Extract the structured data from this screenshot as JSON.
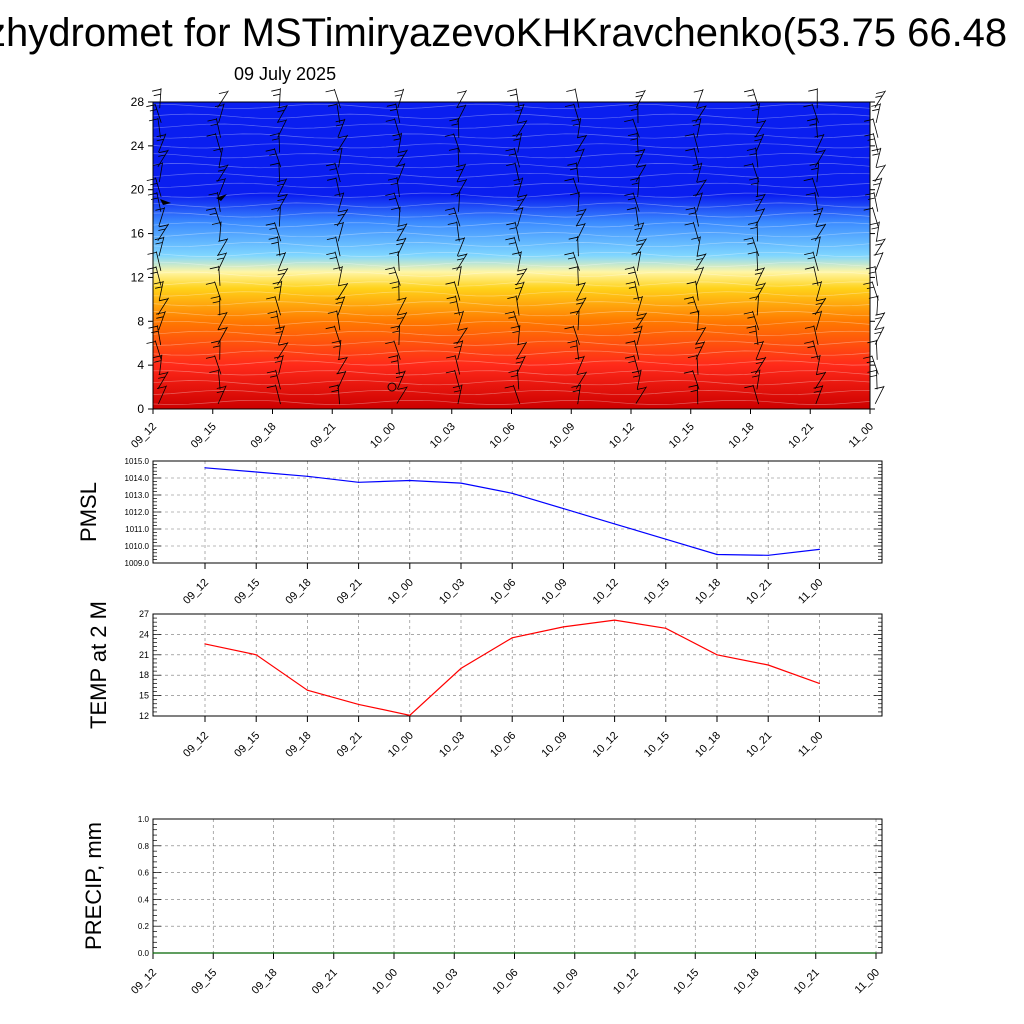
{
  "header": {
    "title": "zhydromet for MSTimiryazevoKHKravchenko(53.75 66.48",
    "date": "09 July 2025"
  },
  "colors": {
    "pmsl_line": "#0000ff",
    "temp_line": "#ff0000",
    "precip_line": "#006400",
    "contour_top": "#0a1ef0",
    "contour_bottom": "#dd0000"
  },
  "chart_data": [
    {
      "type": "heatmap",
      "title": "",
      "x": [
        "09_12",
        "09_15",
        "09_18",
        "09_21",
        "10_00",
        "10_03",
        "10_06",
        "10_09",
        "10_12",
        "10_15",
        "10_18",
        "10_21",
        "11_00"
      ],
      "ylim": [
        0,
        28
      ],
      "yticks": [
        "0",
        "4",
        "8",
        "12",
        "16",
        "20",
        "24",
        "28"
      ],
      "color_bands": [
        {
          "level": 0,
          "color": "#cc0000"
        },
        {
          "level": 4,
          "color": "#ff2a1a"
        },
        {
          "level": 8,
          "color": "#ff7a00"
        },
        {
          "level": 11,
          "color": "#ffd21a"
        },
        {
          "level": 12.5,
          "color": "#fff6a6"
        },
        {
          "level": 14,
          "color": "#7fd6ff"
        },
        {
          "level": 17,
          "color": "#3c8cff"
        },
        {
          "level": 19.5,
          "color": "#0a1ef0"
        },
        {
          "level": 28,
          "color": "#0a1ef0"
        }
      ],
      "wind_barbs": "present"
    },
    {
      "type": "line",
      "ylabel": "PMSL",
      "x": [
        "09_12",
        "09_15",
        "09_18",
        "09_21",
        "10_00",
        "10_03",
        "10_06",
        "10_09",
        "10_12",
        "10_15",
        "10_18",
        "10_21",
        "11_00"
      ],
      "ylim": [
        1009.0,
        1015.0
      ],
      "yticks": [
        "1009.0",
        "1010.0",
        "1011.0",
        "1012.0",
        "1013.0",
        "1014.0",
        "1015.0"
      ],
      "series": [
        {
          "values": [
            1014.6,
            1014.35,
            1014.1,
            1013.75,
            1013.85,
            1013.7,
            1013.1,
            1012.2,
            1011.3,
            1010.4,
            1009.5,
            1009.45,
            1009.8
          ]
        }
      ]
    },
    {
      "type": "line",
      "ylabel": "TEMP at 2 M",
      "x": [
        "09_12",
        "09_15",
        "09_18",
        "09_21",
        "10_00",
        "10_03",
        "10_06",
        "10_09",
        "10_12",
        "10_15",
        "10_18",
        "10_21",
        "11_00"
      ],
      "ylim": [
        12,
        27
      ],
      "yticks": [
        "12",
        "15",
        "18",
        "21",
        "24",
        "27"
      ],
      "series": [
        {
          "values": [
            22.6,
            21.0,
            15.8,
            13.7,
            12.1,
            19.0,
            23.5,
            25.1,
            26.1,
            24.9,
            21.0,
            19.5,
            16.8
          ]
        }
      ]
    },
    {
      "type": "line",
      "ylabel": "PRECIP, mm",
      "x": [
        "09_12",
        "09_15",
        "09_18",
        "09_21",
        "10_00",
        "10_03",
        "10_06",
        "10_09",
        "10_12",
        "10_15",
        "10_18",
        "10_21",
        "11_00"
      ],
      "ylim": [
        0.0,
        1.0
      ],
      "yticks": [
        "0.0",
        "0.2",
        "0.4",
        "0.6",
        "0.8",
        "1.0"
      ],
      "series": [
        {
          "values": [
            0,
            0,
            0,
            0,
            0,
            0,
            0,
            0,
            0,
            0,
            0,
            0,
            0
          ]
        }
      ]
    }
  ]
}
